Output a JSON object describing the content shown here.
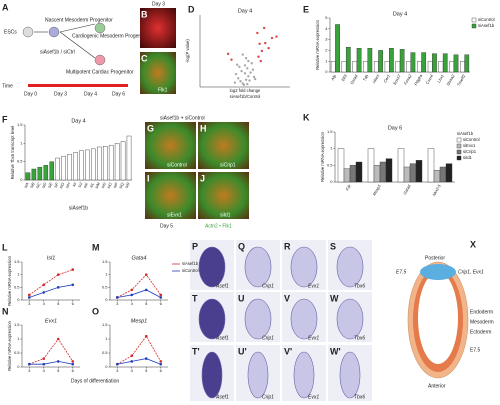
{
  "figure": {
    "A": {
      "letter": "A",
      "esc": "ESCs",
      "nascent": "Nascent Mesoderm Progenitor",
      "cardio": "Cardiogenic Mesoderm Progenitor",
      "treatment": "siAsef1b / siCtrl",
      "mature": "Multipotent Cardiac Progenitor",
      "time": "Time",
      "days": [
        "Day 0",
        "Day 3",
        "Day 4",
        "Day 6"
      ]
    },
    "B": {
      "letter": "B",
      "label": "Day 3"
    },
    "C": {
      "letter": "C",
      "label": "Flk1"
    },
    "GJ": {
      "header": "siAsef1b + siControl",
      "letters": [
        "G",
        "H",
        "I",
        "J"
      ],
      "labels": [
        "siControl",
        "siCrip1",
        "siEvx1",
        "siId1"
      ],
      "day": "Day 5",
      "stain": "Actn2 • Flk1"
    },
    "PW": {
      "rows": [
        [
          "P",
          "Q",
          "R",
          "S"
        ],
        [
          "T",
          "U",
          "V",
          "W"
        ],
        [
          "T'",
          "U'",
          "V'",
          "W'"
        ]
      ],
      "genes": [
        "Asef1",
        "Crip1",
        "Evx1",
        "Tbx6"
      ]
    },
    "X": {
      "letter": "X",
      "posterior": "Posterior",
      "anterior": "Anterior",
      "evx": "Crip1, Evx1",
      "e75": "E7.5",
      "endoderm": "Endoderm",
      "mesoderm": "Mesoderm",
      "ectoderm": "Ectoderm",
      "stage": "E7.5"
    }
  },
  "chart_data": [
    {
      "type": "scatter",
      "panel": "D",
      "title": "Day 4",
      "xlabel": "log2 fold change",
      "xlabel2": "siAsef1b/Control",
      "ylabel": "-log(P value)",
      "xlim": [
        -4,
        4
      ],
      "ylim": [
        0,
        10
      ],
      "groups": [
        {
          "color": "#9a9a9a",
          "x": [
            -0.2,
            0.1,
            0.3,
            -0.4,
            0.5,
            -0.6,
            0.2,
            0.0,
            -0.1,
            0.4,
            -0.3,
            0.6,
            0.8,
            -0.8,
            0.1,
            -0.5,
            0.3,
            0.7,
            -0.2,
            0.9,
            -0.9,
            0.2,
            0.0,
            -0.7
          ],
          "values": [
            0.5,
            1.0,
            1.5,
            0.8,
            2.0,
            1.2,
            2.6,
            3.0,
            0.3,
            0.9,
            2.2,
            3.3,
            1.4,
            1.8,
            4.0,
            2.8,
            3.6,
            2.4,
            4.5,
            1.1,
            0.6,
            0.4,
            1.9,
            3.1
          ]
        },
        {
          "color": "#d62728",
          "x": [
            1.2,
            1.5,
            1.8,
            2.1,
            1.4,
            2.4,
            1.1,
            1.7,
            -1.2,
            -1.5,
            2.8,
            1.3
          ],
          "values": [
            4.2,
            5.0,
            6.1,
            5.4,
            3.6,
            6.8,
            7.5,
            8.2,
            3.8,
            4.6,
            7.0,
            6.0
          ]
        }
      ]
    },
    {
      "type": "bar",
      "panel": "E",
      "title": "Day 4",
      "ylabel": "Relative mRNA expression",
      "ylim": [
        0,
        5
      ],
      "yticks": [
        0,
        1,
        2,
        3,
        4,
        5
      ],
      "categories": [
        "Afp",
        "Elf3",
        "Gsta4",
        "Tdh",
        "Hhex",
        "Cer1",
        "Sox17",
        "Foxa2",
        "Pdgfra",
        "Cxcr4",
        "Lhx1",
        "Shisa2",
        "Tmeff2"
      ],
      "series": [
        {
          "name": "siControl",
          "color": "#ffffff",
          "values": [
            1,
            1,
            1,
            1,
            1,
            1,
            1,
            1,
            1,
            1,
            1,
            1,
            1
          ]
        },
        {
          "name": "siAsef1b",
          "color": "#3aa23a",
          "values": [
            4.4,
            2.3,
            2.2,
            2.2,
            2.0,
            2.2,
            2.1,
            1.8,
            1.8,
            1.7,
            1.7,
            1.6,
            1.6
          ]
        }
      ]
    },
    {
      "type": "bar",
      "panel": "F",
      "title": "Day 4",
      "ylabel": "Relative Tbx6 transcript level",
      "xlabel": "siAsef1b",
      "ylim": [
        0,
        1.5
      ],
      "yticks": [
        0,
        0.5,
        1,
        1.5
      ],
      "categories": [
        "siA",
        "siB",
        "siC",
        "siD",
        "siE",
        "siF",
        "siG",
        "siH",
        "siI",
        "siJ",
        "siK",
        "siL",
        "siM",
        "siN",
        "siO",
        "siP",
        "siQ",
        "siR"
      ],
      "values": [
        0.2,
        0.3,
        0.35,
        0.4,
        0.5,
        0.6,
        0.65,
        0.7,
        0.75,
        0.8,
        0.82,
        0.85,
        0.9,
        0.92,
        0.95,
        1.0,
        1.05,
        1.2
      ],
      "colors": [
        "#3aa23a",
        "#3aa23a",
        "#3aa23a",
        "#3aa23a",
        "#3aa23a",
        "#ffffff",
        "#ffffff",
        "#ffffff",
        "#ffffff",
        "#ffffff",
        "#ffffff",
        "#ffffff",
        "#ffffff",
        "#ffffff",
        "#ffffff",
        "#ffffff",
        "#ffffff",
        "#ffffff"
      ]
    },
    {
      "type": "bar",
      "panel": "K",
      "title": "Day 6",
      "ylabel": "Relative mRNA expression",
      "legend_title": "siAsef1b",
      "ylim": [
        0,
        1.5
      ],
      "yticks": [
        0,
        0.5,
        1,
        1.5
      ],
      "categories": [
        "Kdr",
        "Mesp1",
        "Gata4",
        "Nkx2-5"
      ],
      "series": [
        {
          "name": "siControl",
          "color": "#ffffff",
          "values": [
            1,
            1,
            1,
            1
          ]
        },
        {
          "name": "siEvx1",
          "color": "#bbbbbb",
          "values": [
            0.4,
            0.5,
            0.45,
            0.35
          ]
        },
        {
          "name": "siCrip1",
          "color": "#777777",
          "values": [
            0.5,
            0.6,
            0.55,
            0.45
          ]
        },
        {
          "name": "siId1",
          "color": "#222222",
          "values": [
            0.6,
            0.7,
            0.65,
            0.55
          ]
        }
      ]
    },
    {
      "type": "line",
      "panel": "L",
      "title": "Isl1",
      "ylabel": "Relative mRNA expression",
      "xlim": [
        2.5,
        6.5
      ],
      "xticks": [
        3,
        4,
        5,
        6
      ],
      "ylim": [
        0,
        1.5
      ],
      "yticks": [
        0,
        0.5,
        1,
        1.5
      ],
      "x": [
        3,
        4,
        5,
        6
      ],
      "series": [
        {
          "color": "#d62728",
          "values": [
            0.2,
            0.6,
            1.0,
            1.2
          ]
        },
        {
          "color": "#1f3fbf",
          "values": [
            0.1,
            0.3,
            0.5,
            0.6
          ]
        }
      ]
    },
    {
      "type": "line",
      "panel": "M",
      "title": "Gata4",
      "xlim": [
        2.5,
        6.5
      ],
      "xticks": [
        3,
        4,
        5,
        6
      ],
      "ylim": [
        0,
        1.5
      ],
      "yticks": [
        0,
        0.5,
        1,
        1.5
      ],
      "x": [
        3,
        4,
        5,
        6
      ],
      "series": [
        {
          "name": "siAsef1b",
          "color": "#d62728",
          "values": [
            0.1,
            0.4,
            1.0,
            0.2
          ]
        },
        {
          "name": "siControl",
          "color": "#1f3fbf",
          "values": [
            0.1,
            0.2,
            0.4,
            0.1
          ]
        }
      ]
    },
    {
      "type": "line",
      "panel": "N",
      "title": "Evx1",
      "ylabel": "Relative mRNA expression",
      "xlabel": "Days of differentiation",
      "xlim": [
        2.5,
        6.5
      ],
      "xticks": [
        3,
        4,
        5,
        6
      ],
      "ylim": [
        0,
        1.5
      ],
      "yticks": [
        0,
        0.5,
        1,
        1.5
      ],
      "x": [
        3,
        4,
        5,
        6
      ],
      "series": [
        {
          "color": "#d62728",
          "values": [
            0.1,
            0.3,
            1.0,
            0.2
          ]
        },
        {
          "color": "#1f3fbf",
          "values": [
            0.1,
            0.1,
            0.2,
            0.1
          ]
        }
      ]
    },
    {
      "type": "line",
      "panel": "O",
      "title": "Mesp1",
      "xlim": [
        2.5,
        6.5
      ],
      "xticks": [
        3,
        4,
        5,
        6
      ],
      "ylim": [
        0,
        1.5
      ],
      "yticks": [
        0,
        0.5,
        1,
        1.5
      ],
      "x": [
        3,
        4,
        5,
        6
      ],
      "series": [
        {
          "color": "#d62728",
          "values": [
            0.1,
            0.4,
            1.1,
            0.2
          ]
        },
        {
          "color": "#1f3fbf",
          "values": [
            0.1,
            0.2,
            0.3,
            0.1
          ]
        }
      ]
    }
  ]
}
